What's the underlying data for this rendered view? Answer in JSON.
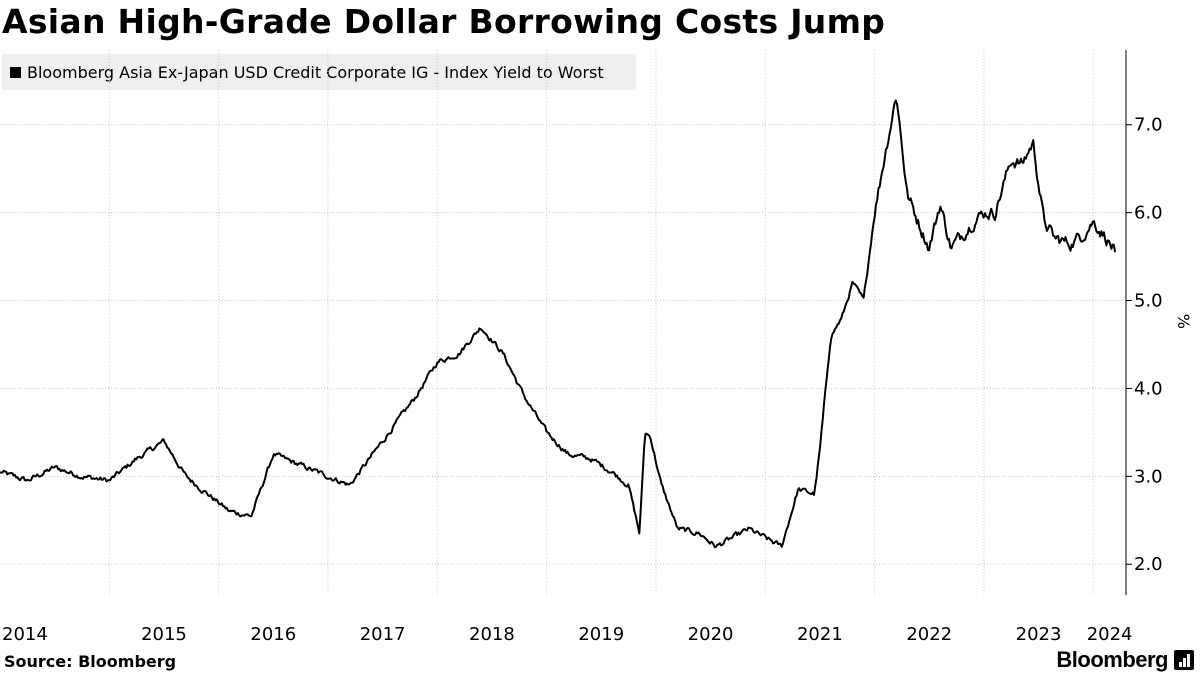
{
  "header": {
    "title": "Asian High-Grade Dollar Borrowing Costs Jump"
  },
  "legend": {
    "label": "Bloomberg Asia Ex-Japan USD Credit Corporate IG - Index Yield to Worst"
  },
  "footer": {
    "source": "Source: Bloomberg",
    "brand": "Bloomberg"
  },
  "colors": {
    "line": "#000000",
    "grid": "#c8c8c8",
    "legend_bg": "#efefef"
  },
  "chart_data": {
    "type": "line",
    "title": "Asian High-Grade Dollar Borrowing Costs Jump",
    "series": [
      {
        "name": "Bloomberg Asia Ex-Japan USD Credit Corporate IG - Index Yield to Worst",
        "x": [
          2014.0,
          2014.25,
          2014.5,
          2014.75,
          2015.0,
          2015.25,
          2015.5,
          2015.7,
          2015.9,
          2016.1,
          2016.3,
          2016.5,
          2016.7,
          2016.8,
          2017.0,
          2017.2,
          2017.5,
          2017.8,
          2018.0,
          2018.2,
          2018.4,
          2018.6,
          2018.8,
          2019.0,
          2019.2,
          2019.4,
          2019.6,
          2019.75,
          2019.85,
          2019.9,
          2019.95,
          2020.05,
          2020.2,
          2020.4,
          2020.55,
          2020.7,
          2020.85,
          2021.0,
          2021.15,
          2021.3,
          2021.45,
          2021.5,
          2021.6,
          2021.7,
          2021.8,
          2021.9,
          2022.0,
          2022.1,
          2022.2,
          2022.3,
          2022.4,
          2022.5,
          2022.6,
          2022.7,
          2022.8,
          2022.9,
          2023.0,
          2023.1,
          2023.25,
          2023.35,
          2023.45,
          2023.55,
          2023.65,
          2023.8,
          2023.9,
          2024.0,
          2024.1,
          2024.2
        ],
        "values": [
          3.05,
          2.95,
          3.1,
          3.0,
          2.95,
          3.2,
          3.4,
          3.0,
          2.8,
          2.6,
          2.55,
          3.25,
          3.15,
          3.1,
          3.0,
          2.9,
          3.4,
          3.9,
          4.3,
          4.4,
          4.7,
          4.4,
          3.9,
          3.5,
          3.25,
          3.2,
          3.05,
          2.9,
          2.35,
          3.5,
          3.45,
          2.9,
          2.4,
          2.35,
          2.2,
          2.3,
          2.4,
          2.3,
          2.2,
          2.85,
          2.8,
          3.3,
          4.6,
          4.8,
          5.2,
          5.0,
          6.0,
          6.7,
          7.35,
          6.2,
          5.9,
          5.6,
          6.1,
          5.6,
          5.75,
          5.9,
          6.0,
          6.0,
          6.6,
          6.55,
          6.8,
          5.9,
          5.7,
          5.65,
          5.75,
          5.9,
          5.75,
          5.55
        ]
      }
    ],
    "x_tick_labels": [
      "2014",
      "2015",
      "2016",
      "2017",
      "2018",
      "2019",
      "2020",
      "2021",
      "2022",
      "2023",
      "2024"
    ],
    "y_ticks": [
      2.0,
      3.0,
      4.0,
      5.0,
      6.0,
      7.0
    ],
    "y_tick_labels": [
      "2.0",
      "3.0",
      "4.0",
      "5.0",
      "6.0",
      "7.0"
    ],
    "ylabel": "%",
    "xlim": [
      2014.0,
      2024.3
    ],
    "ylim": [
      1.65,
      7.85
    ],
    "grid": true,
    "y_axis_side": "right",
    "legend_position": "top-left"
  }
}
